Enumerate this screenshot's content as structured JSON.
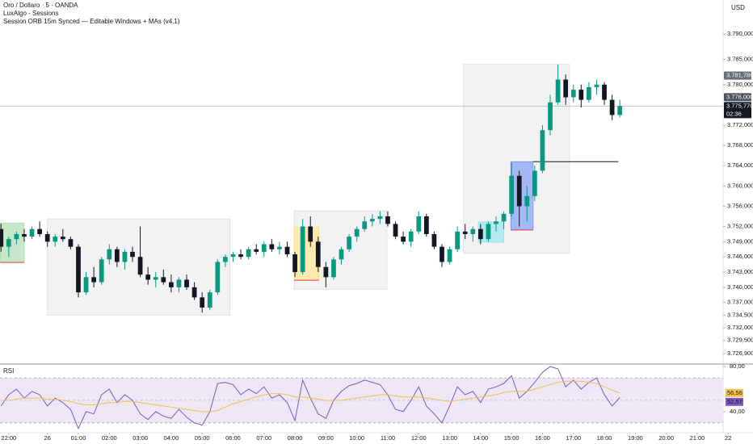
{
  "chart_data": [
    {
      "type": "candlestick",
      "title": "Oro / Dollaro · 5 · OANDA",
      "indicators": [
        "LuxAlgo - Sessions",
        "Session ORB 15m Synced — Editable Windows + MAs (v4.1)"
      ],
      "currency": "USD",
      "up_color": "#089981",
      "down_color": "#131722",
      "xlim": [
        -0.13,
        93.35
      ],
      "xticks": [
        {
          "value": 1,
          "label": "22:00"
        },
        {
          "value": 6,
          "label": "26"
        },
        {
          "value": 10,
          "label": "01:00"
        },
        {
          "value": 14,
          "label": "02:00"
        },
        {
          "value": 18,
          "label": "03:00"
        },
        {
          "value": 22,
          "label": "04:00"
        },
        {
          "value": 26,
          "label": "05:00"
        },
        {
          "value": 30,
          "label": "06:00"
        },
        {
          "value": 34,
          "label": "07:00"
        },
        {
          "value": 38,
          "label": "08:00"
        },
        {
          "value": 42,
          "label": "09:00"
        },
        {
          "value": 46,
          "label": "10:00"
        },
        {
          "value": 50,
          "label": "11:00"
        },
        {
          "value": 54,
          "label": "12:00"
        },
        {
          "value": 58,
          "label": "13:00"
        },
        {
          "value": 62,
          "label": "14:00"
        },
        {
          "value": 66,
          "label": "15:00"
        },
        {
          "value": 70,
          "label": "16:00"
        },
        {
          "value": 74,
          "label": "17:00"
        },
        {
          "value": 78,
          "label": "18:00"
        },
        {
          "value": 82,
          "label": "19:00"
        },
        {
          "value": 86,
          "label": "20:00"
        },
        {
          "value": 90,
          "label": "21:00"
        },
        {
          "value": 94,
          "label": "22"
        }
      ],
      "ylim": [
        3725,
        3796.7
      ],
      "yticks": [
        {
          "value": 3790,
          "label": "3.790,000"
        },
        {
          "value": 3785,
          "label": "3.785,000"
        },
        {
          "value": 3780,
          "label": "3.780,000"
        },
        {
          "value": 3772,
          "label": "3.772,000"
        },
        {
          "value": 3768,
          "label": "3.768,000"
        },
        {
          "value": 3764,
          "label": "3.764,000"
        },
        {
          "value": 3760,
          "label": "3.760,000"
        },
        {
          "value": 3756,
          "label": "3.756,000"
        },
        {
          "value": 3752,
          "label": "3.752,000"
        },
        {
          "value": 3749,
          "label": "3.749,000"
        },
        {
          "value": 3746,
          "label": "3.746,000"
        },
        {
          "value": 3743,
          "label": "3.743,000"
        },
        {
          "value": 3740,
          "label": "3.740,000"
        },
        {
          "value": 3737,
          "label": "3.737,000"
        },
        {
          "value": 3734.5,
          "label": "3.734,500"
        },
        {
          "value": 3732,
          "label": "3.732,000"
        },
        {
          "value": 3729.5,
          "label": "3.729,500"
        },
        {
          "value": 3726.9,
          "label": "3.726,900"
        }
      ],
      "open": [
        3751.5,
        3748,
        3749.5,
        3750.5,
        3750,
        3751.5,
        3750.5,
        3749,
        3750,
        3749.5,
        3748,
        3739,
        3742,
        3741,
        3745.5,
        3747.5,
        3745,
        3747,
        3746,
        3742.5,
        3741.5,
        3742,
        3741,
        3740,
        3741.5,
        3740,
        3738,
        3736,
        3739,
        3745,
        3746,
        3746.5,
        3746,
        3747.5,
        3747,
        3748.5,
        3747.5,
        3748,
        3746.5,
        3743,
        3752,
        3749,
        3744,
        3742,
        3745.5,
        3747.5,
        3750,
        3751.5,
        3753,
        3753.5,
        3754,
        3752.5,
        3750,
        3749,
        3751,
        3754,
        3750.5,
        3748,
        3745,
        3747.5,
        3751,
        3750.5,
        3751.5,
        3749.5,
        3752.5,
        3753,
        3754.5,
        3762,
        3756,
        3758,
        3763,
        3771,
        3776.5,
        3781,
        3777.5,
        3779,
        3777,
        3779.5,
        3780,
        3777,
        3774
      ],
      "high": [
        3752.5,
        3750,
        3751,
        3751.5,
        3752,
        3753,
        3751,
        3750.5,
        3751.5,
        3750,
        3748.5,
        3743,
        3744,
        3746,
        3748.5,
        3748,
        3747.5,
        3748,
        3752,
        3744,
        3743,
        3743.5,
        3742.5,
        3742,
        3742.5,
        3741,
        3739,
        3739.5,
        3745.5,
        3746.5,
        3747,
        3747.5,
        3748,
        3748.5,
        3749,
        3749.5,
        3749,
        3749,
        3747,
        3753.5,
        3754,
        3750,
        3745,
        3746,
        3748,
        3750.5,
        3752,
        3754,
        3754.5,
        3755,
        3755,
        3753,
        3751,
        3751.5,
        3755,
        3754.5,
        3751,
        3748.5,
        3748,
        3752,
        3752.5,
        3752,
        3752.5,
        3753,
        3754,
        3755,
        3764.5,
        3763,
        3760,
        3764,
        3772,
        3778,
        3784,
        3782,
        3780,
        3780,
        3780.5,
        3781,
        3780.5,
        3778,
        3777
      ],
      "low": [
        3747,
        3746,
        3748.5,
        3749,
        3749.5,
        3750,
        3748,
        3748,
        3749,
        3747.5,
        3738,
        3738.5,
        3740,
        3740.5,
        3744.5,
        3744,
        3743.5,
        3745,
        3742,
        3740.5,
        3740,
        3740.5,
        3739,
        3739,
        3739.5,
        3737.5,
        3735,
        3735.5,
        3738.5,
        3744,
        3745,
        3745.5,
        3745.5,
        3746.5,
        3746,
        3747,
        3746.5,
        3746,
        3742,
        3742.5,
        3748,
        3743,
        3740,
        3741.5,
        3744.5,
        3747,
        3749,
        3751,
        3752,
        3752.5,
        3752,
        3749.5,
        3748.5,
        3748,
        3750.5,
        3750,
        3747.5,
        3744,
        3744.5,
        3747,
        3749.5,
        3749,
        3748.5,
        3749,
        3751,
        3751.5,
        3754,
        3752,
        3753,
        3757,
        3762.5,
        3770,
        3776,
        3776,
        3776.5,
        3775.5,
        3776.5,
        3778,
        3776,
        3773,
        3773.5
      ],
      "close": [
        3748,
        3749.5,
        3750.5,
        3750,
        3751.5,
        3750.5,
        3749,
        3750,
        3749.5,
        3748,
        3739,
        3742,
        3741,
        3745.5,
        3747.5,
        3745,
        3747,
        3746,
        3742.5,
        3741.5,
        3742,
        3741,
        3740,
        3741.5,
        3740,
        3738,
        3736,
        3739,
        3745,
        3746,
        3746.5,
        3746,
        3747.5,
        3747,
        3748.5,
        3747.5,
        3748,
        3746.5,
        3743,
        3752,
        3749,
        3744,
        3742,
        3745.5,
        3747.5,
        3750,
        3751.5,
        3753,
        3753.5,
        3754,
        3752.5,
        3750,
        3749,
        3751,
        3754,
        3750.5,
        3748,
        3745,
        3747.5,
        3751,
        3750.5,
        3751.5,
        3749.5,
        3752.5,
        3753,
        3754.5,
        3762,
        3756,
        3758,
        3763,
        3771,
        3776.5,
        3781,
        3777.5,
        3779,
        3777,
        3779.5,
        3780,
        3777,
        3774,
        3775.77
      ],
      "boxes": [
        {
          "x": [
            -0.1,
            3
          ],
          "y": [
            3744.9,
            3752.7
          ],
          "fill": "#c8e6c9",
          "stroke": "#a5d6a7",
          "edge": "#f23645"
        },
        {
          "x": [
            6,
            29.6
          ],
          "y": [
            3734.5,
            3753.5
          ],
          "fill": "#f2f2f2",
          "stroke": "#d1d4dc"
        },
        {
          "x": [
            37.9,
            49.9
          ],
          "y": [
            3739.6,
            3755.1
          ],
          "fill": "#f2f2f2",
          "stroke": "#d1d4dc"
        },
        {
          "x": [
            37.9,
            41.1
          ],
          "y": [
            3741.4,
            3751.8
          ],
          "fill": "#fde9b0",
          "stroke": "#f7d57a",
          "edge": "#f23645"
        },
        {
          "x": [
            59.8,
            73.5
          ],
          "y": [
            3746.7,
            3784
          ],
          "fill": "#f2f2f2",
          "stroke": "#d1d4dc"
        },
        {
          "x": [
            61.7,
            65
          ],
          "y": [
            3748.9,
            3752.9
          ],
          "fill": "#b2ebf2",
          "stroke": "#80deea"
        },
        {
          "x": [
            65.9,
            68.8
          ],
          "y": [
            3751.3,
            3764.8
          ],
          "fill": "#a4b8f5",
          "stroke": "#5c7cfa",
          "edge": "#f23645"
        }
      ],
      "levels": [
        {
          "value": 3764.8,
          "x": [
            68.8,
            79.8
          ],
          "color": "#131722"
        }
      ],
      "price_line_color": "#b2b5be",
      "price_labels": [
        {
          "value": 3781.78,
          "label": "3.781,780",
          "bg": "#6a6d78"
        },
        {
          "value": 3776,
          "label": "3.776,000",
          "bg": "#50535e"
        },
        {
          "value": 3775.77,
          "label": "3.775,770",
          "bg": "#131722"
        }
      ],
      "countdown": "02:36"
    },
    {
      "type": "line",
      "title": "RSI",
      "ylim": [
        22,
        81.5
      ],
      "yticks": [
        {
          "value": 80,
          "label": "80,00"
        },
        {
          "value": 40,
          "label": "40,00"
        }
      ],
      "bands": [
        30,
        70
      ],
      "midline": 50,
      "band_color": "#ede7f6",
      "lines": [
        {
          "color": "#7e57c2",
          "last_label": "52,57",
          "values": [
            45,
            55,
            60,
            52,
            58,
            55,
            45,
            52,
            48,
            42,
            25,
            40,
            38,
            55,
            60,
            48,
            55,
            50,
            38,
            33,
            40,
            36,
            34,
            42,
            35,
            30,
            28,
            40,
            65,
            66,
            64,
            55,
            60,
            56,
            62,
            52,
            55,
            48,
            32,
            68,
            52,
            38,
            34,
            50,
            58,
            63,
            65,
            68,
            66,
            64,
            55,
            42,
            40,
            50,
            62,
            45,
            38,
            30,
            45,
            62,
            55,
            58,
            48,
            60,
            62,
            65,
            72,
            52,
            58,
            66,
            75,
            80,
            78,
            62,
            68,
            60,
            66,
            70,
            55,
            45,
            52.57
          ]
        },
        {
          "color": "#f2c14e",
          "last_label": "56,56",
          "values": [
            50,
            50,
            51,
            52,
            52,
            52,
            51,
            51,
            50,
            49,
            47,
            46,
            46,
            47,
            48,
            48,
            49,
            49,
            48,
            47,
            46,
            45,
            44,
            43,
            42,
            41,
            40,
            40,
            41,
            44,
            47,
            49,
            51,
            53,
            55,
            56,
            56,
            55,
            53,
            53,
            52,
            51,
            50,
            50,
            50,
            51,
            52,
            53,
            54,
            55,
            55,
            54,
            53,
            53,
            53,
            52,
            51,
            50,
            49,
            50,
            51,
            52,
            53,
            54,
            55,
            57,
            58,
            58,
            58,
            60,
            62,
            64,
            66,
            67,
            67,
            67,
            66,
            65,
            62,
            59,
            56.56
          ]
        }
      ]
    }
  ]
}
